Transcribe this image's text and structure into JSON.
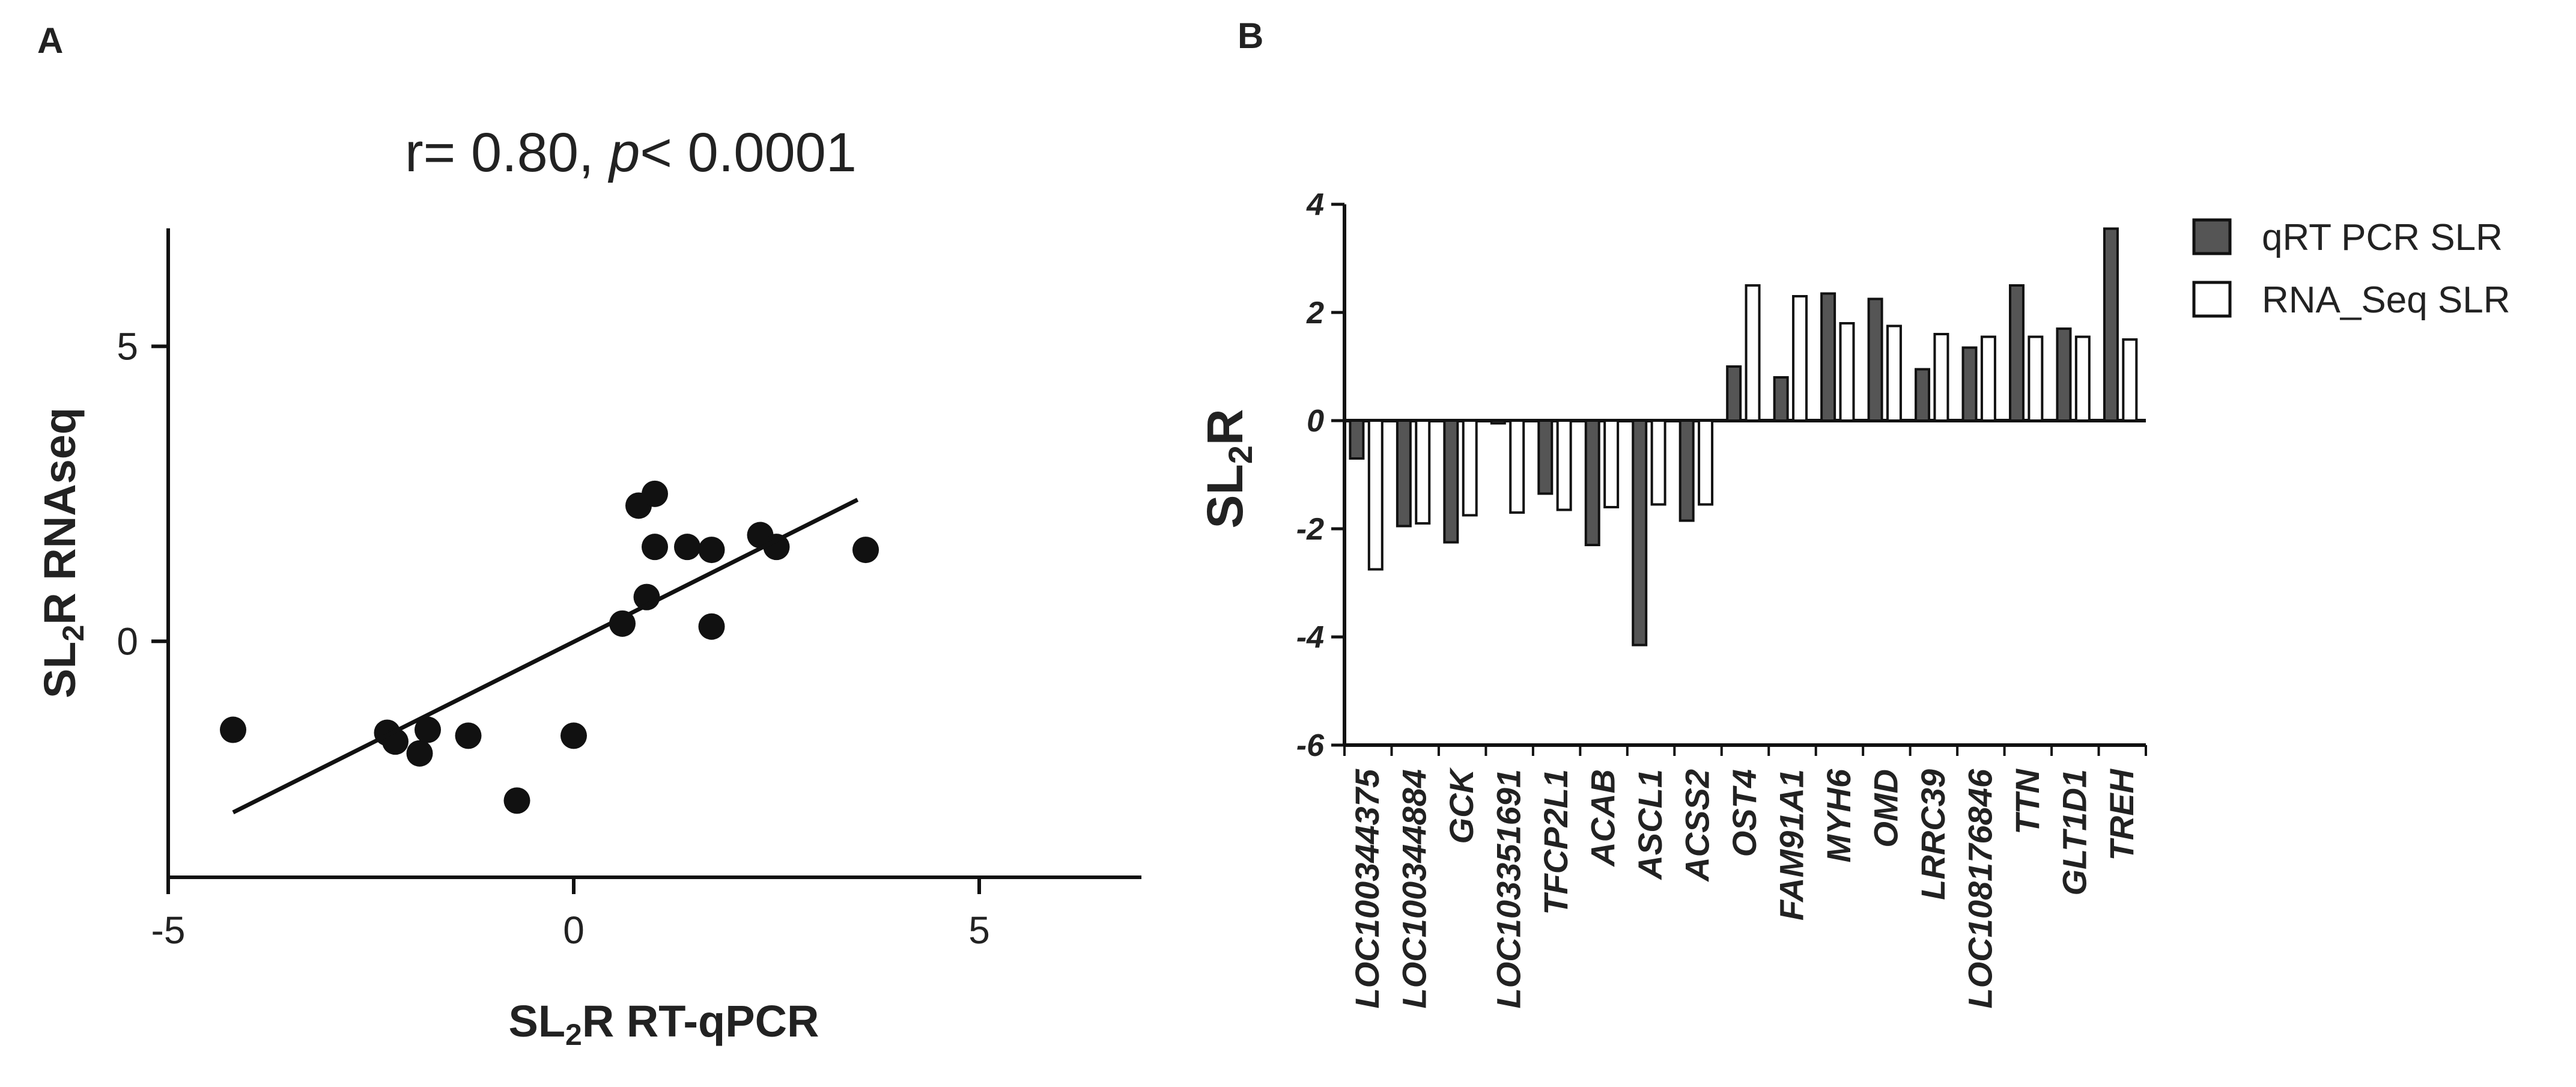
{
  "panels": {
    "a": {
      "label": "A"
    },
    "b": {
      "label": "B"
    }
  },
  "chart_data": [
    {
      "id": "a",
      "type": "scatter",
      "title_prefix": "r= 0.80, ",
      "title_p": "p",
      "title_suffix": "< 0.0001",
      "xlabel": {
        "pre": "SL",
        "sub": "2",
        "post": "R RT-qPCR"
      },
      "ylabel": {
        "pre": "SL",
        "sub": "2",
        "post": "R RNAseq"
      },
      "xlim": [
        -5,
        7
      ],
      "ylim": [
        -4,
        7
      ],
      "xticks": [
        -5,
        0,
        5
      ],
      "yticks": [
        0,
        5
      ],
      "points": [
        {
          "x": -4.2,
          "y": -1.5
        },
        {
          "x": -2.3,
          "y": -1.55
        },
        {
          "x": -2.2,
          "y": -1.7
        },
        {
          "x": -1.9,
          "y": -1.9
        },
        {
          "x": -1.8,
          "y": -1.5
        },
        {
          "x": -1.3,
          "y": -1.6
        },
        {
          "x": -0.7,
          "y": -2.7
        },
        {
          "x": 0.0,
          "y": -1.6
        },
        {
          "x": 0.6,
          "y": 0.3
        },
        {
          "x": 0.8,
          "y": 2.3
        },
        {
          "x": 0.9,
          "y": 0.75
        },
        {
          "x": 1.0,
          "y": 1.6
        },
        {
          "x": 1.0,
          "y": 2.5
        },
        {
          "x": 1.4,
          "y": 1.6
        },
        {
          "x": 1.7,
          "y": 1.55
        },
        {
          "x": 1.7,
          "y": 0.25
        },
        {
          "x": 2.3,
          "y": 1.8
        },
        {
          "x": 2.5,
          "y": 1.6
        },
        {
          "x": 3.6,
          "y": 1.55
        }
      ],
      "fit_line": {
        "x": [
          -4.2,
          3.5
        ],
        "y": [
          -2.9,
          2.4
        ]
      }
    },
    {
      "id": "b",
      "type": "bar",
      "ylabel": {
        "pre": "SL",
        "sub": "2",
        "post": "R"
      },
      "ylim": [
        -6,
        4
      ],
      "yticks": [
        4,
        2,
        0,
        -2,
        -4,
        -6
      ],
      "categories": [
        "LOC100344375",
        "LOC100344884",
        "GCK",
        "LOC103351691",
        "TFCP2L1",
        "ACAB",
        "ASCL1",
        "ACSS2",
        "OST4",
        "FAM91A1",
        "MYH6",
        "OMD",
        "LRRC39",
        "LOC108176846",
        "TTN",
        "GLT1D1",
        "TREH"
      ],
      "series": [
        {
          "name": "qRT PCR SLR",
          "color": "#555555",
          "values": [
            -0.7,
            -1.95,
            -2.25,
            -0.05,
            -1.35,
            -2.3,
            -4.15,
            -1.85,
            1.0,
            0.8,
            2.35,
            2.25,
            0.95,
            1.35,
            2.5,
            1.7,
            3.55
          ]
        },
        {
          "name": "RNA_Seq SLR",
          "color": "#ffffff",
          "values": [
            -2.75,
            -1.9,
            -1.75,
            -1.7,
            -1.65,
            -1.6,
            -1.55,
            -1.55,
            2.5,
            2.3,
            1.8,
            1.75,
            1.6,
            1.55,
            1.55,
            1.55,
            1.5
          ]
        }
      ],
      "legend_position": "top-right"
    }
  ]
}
